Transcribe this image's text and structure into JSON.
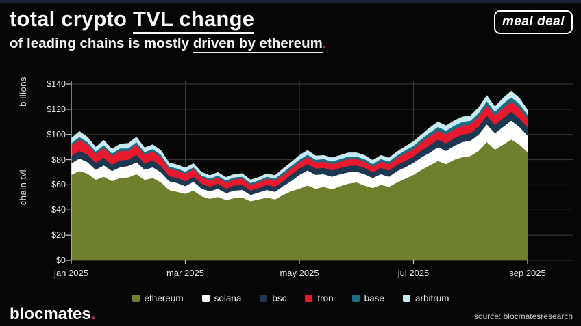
{
  "header": {
    "title_plain": "total crypto ",
    "title_underlined": "TVL change",
    "subtitle_plain": "of leading chains is mostly ",
    "subtitle_underlined": "driven by ethereum",
    "subtitle_period": ".",
    "logo_text": "meal deal"
  },
  "footer": {
    "brand": "blocmates",
    "brand_period": ".",
    "source": "source: blocmatesresearch"
  },
  "chart_data": {
    "type": "area",
    "stacked": true,
    "unit": "$ billions",
    "ylabel_top": "billions",
    "ylabel_bottom": "chain tvl",
    "ylim": [
      0,
      140
    ],
    "y_ticks": [
      "$0",
      "$20",
      "$40",
      "$60",
      "$80",
      "$100",
      "$120",
      "$140"
    ],
    "x_ticks": [
      "jan 2025",
      "mar 2025",
      "may 2025",
      "jul 2025",
      "sep 2025"
    ],
    "x_start": "jan 2025",
    "x_end": "sep 2025",
    "grid": true,
    "legend_position": "bottom",
    "series": [
      {
        "name": "ethereum",
        "color": "#6e7f2e",
        "values": [
          68,
          71,
          69,
          64,
          66.5,
          63,
          65.5,
          66,
          68.5,
          64,
          65.5,
          62,
          56,
          54.5,
          53,
          55.5,
          51,
          49,
          50.5,
          48,
          49.5,
          50,
          47,
          48.5,
          50,
          48.5,
          52,
          55,
          57,
          59.5,
          57,
          58.5,
          56.5,
          59,
          61,
          62,
          59.5,
          57.5,
          60,
          58.5,
          62,
          65,
          68,
          72,
          75.5,
          79,
          76.5,
          80,
          82,
          83,
          87,
          94,
          88,
          92,
          96,
          92,
          86
        ]
      },
      {
        "name": "solana",
        "color": "#ffffff",
        "values": [
          9,
          10,
          9,
          8,
          9,
          8,
          8.5,
          9,
          9.5,
          8,
          8.5,
          8,
          7,
          7,
          6,
          7,
          6,
          6,
          6.5,
          5.5,
          6,
          6,
          5,
          5.5,
          6,
          6,
          7,
          8,
          11,
          12,
          11,
          10,
          10,
          9.5,
          9,
          8.5,
          9,
          8,
          8.5,
          8,
          9,
          9,
          9.5,
          10,
          10,
          11,
          10.5,
          11,
          12,
          12,
          13,
          14,
          13,
          14,
          15,
          14,
          13
        ]
      },
      {
        "name": "bsc",
        "color": "#1c3750",
        "values": [
          6,
          6,
          6,
          5.5,
          6,
          5,
          5.5,
          5,
          6,
          5,
          5.5,
          5,
          4,
          4,
          4,
          4,
          4,
          3.5,
          4,
          3.5,
          4,
          4,
          3.5,
          3.5,
          4,
          4,
          4,
          5,
          5,
          5,
          5,
          5,
          5,
          5,
          5,
          5,
          5,
          4.5,
          5,
          5,
          5,
          5,
          5,
          5.5,
          6,
          6,
          6,
          6,
          6,
          6,
          6.5,
          7,
          6.5,
          7,
          7,
          7,
          6.5
        ]
      },
      {
        "name": "tron",
        "color": "#e8192c",
        "values": [
          8,
          9,
          8,
          7,
          8,
          7,
          7.5,
          7,
          8,
          7,
          7,
          7,
          6,
          6,
          6,
          6,
          5,
          5,
          5,
          5,
          5,
          5,
          4.5,
          4.5,
          5,
          5,
          5,
          5,
          5,
          5.5,
          5,
          5,
          5,
          5,
          5.5,
          5,
          5,
          4.5,
          5,
          5,
          5.5,
          6,
          6,
          6.5,
          7,
          7,
          7,
          7,
          7,
          7,
          7.5,
          8,
          7.5,
          8,
          8,
          8,
          7
        ]
      },
      {
        "name": "base",
        "color": "#196e86",
        "values": [
          2,
          2,
          2,
          2,
          2,
          2,
          2,
          2,
          2,
          2,
          2,
          2,
          1.5,
          1.5,
          1.5,
          1.5,
          1.5,
          1.5,
          1.5,
          1.5,
          1.5,
          1.5,
          1.5,
          1.5,
          1.5,
          1.5,
          2,
          2,
          2,
          2,
          2,
          2,
          2,
          2,
          2,
          2,
          2,
          2,
          2,
          2,
          2,
          2.5,
          2.5,
          2.5,
          3,
          3,
          3,
          3,
          3,
          3,
          3,
          3.5,
          3,
          3.5,
          3.5,
          3.5,
          3
        ]
      },
      {
        "name": "arbitrum",
        "color": "#c6e9f2",
        "values": [
          4,
          4.5,
          4,
          3.5,
          4,
          3.5,
          3.5,
          4,
          4,
          3.5,
          3.5,
          3.5,
          3,
          3,
          3,
          3,
          2.5,
          2.5,
          2.5,
          2.5,
          2.5,
          2.5,
          2.5,
          2.5,
          2.5,
          2.5,
          3,
          3,
          3.5,
          3.5,
          3,
          3,
          3,
          3,
          3,
          3,
          3,
          3,
          3,
          3,
          3,
          3,
          3.5,
          3.5,
          4,
          4,
          4,
          4,
          4,
          4,
          4.5,
          4.5,
          4,
          4.5,
          5,
          4.5,
          4
        ]
      }
    ]
  },
  "style": {
    "grid_color": "#3b3b3b",
    "axis_color": "#c8c8c8",
    "accent_red": "#c13048",
    "brand_pink": "#c92a50"
  }
}
